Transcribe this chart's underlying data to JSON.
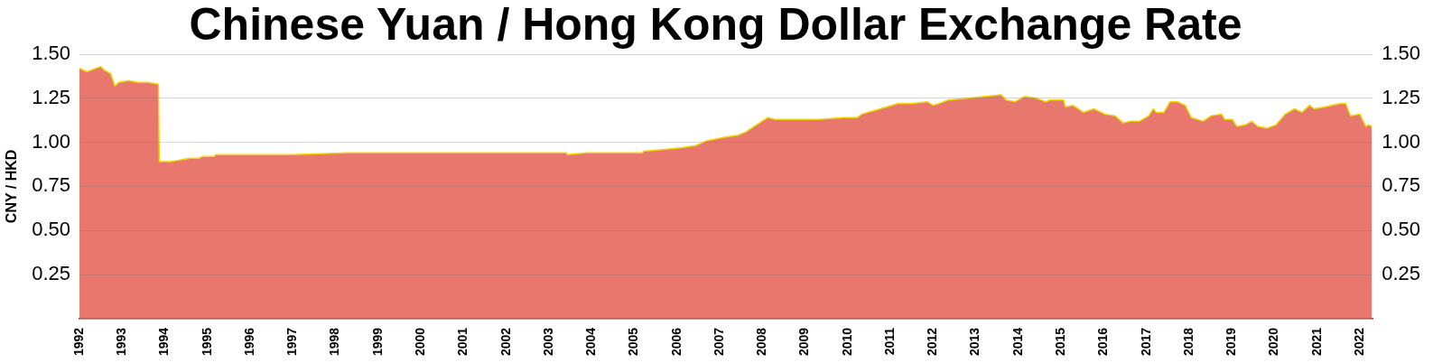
{
  "chart_data": {
    "type": "area",
    "title": "Chinese Yuan / Hong Kong Dollar Exchange Rate",
    "ylabel": "CNY / HKD",
    "x": [
      1992,
      1992.17,
      1992.5,
      1992.58,
      1992.73,
      1992.83,
      1992.92,
      1993.15,
      1993.37,
      1993.6,
      1993.85,
      1993.87,
      1994.13,
      1994.35,
      1994.58,
      1994.81,
      1994.88,
      1995.15,
      1995.2,
      1996.02,
      1997,
      1998.28,
      1999.79,
      2001.75,
      2003.41,
      2003.43,
      2003.88,
      2004.61,
      2005.19,
      2005.21,
      2005.7,
      2006.13,
      2006.42,
      2006.71,
      2006.93,
      2007.14,
      2007.43,
      2007.62,
      2007.87,
      2008.12,
      2008.3,
      2008.59,
      2009.32,
      2009.9,
      2010.22,
      2010.33,
      2010.62,
      2010.91,
      2011.17,
      2011.49,
      2011.86,
      2012.0,
      2012.14,
      2012.36,
      2012.82,
      2013.57,
      2013.6,
      2013.71,
      2013.92,
      2014.14,
      2014.42,
      2014.64,
      2014.74,
      2015.06,
      2015.1,
      2015.28,
      2015.52,
      2015.77,
      2016.02,
      2016.27,
      2016.45,
      2016.63,
      2016.84,
      2017.05,
      2017.16,
      2017.23,
      2017.41,
      2017.55,
      2017.73,
      2017.91,
      2018.05,
      2018.33,
      2018.51,
      2018.76,
      2018.83,
      2019.01,
      2019.12,
      2019.33,
      2019.47,
      2019.61,
      2019.83,
      2020.04,
      2020.25,
      2020.47,
      2020.64,
      2020.82,
      2020.93,
      2021.18,
      2021.53,
      2021.67,
      2021.78,
      2022.0,
      2022.14,
      2022.21,
      2022.28
    ],
    "series": [
      {
        "color": "#e8786d",
        "values": [
          1.42,
          1.4,
          1.43,
          1.41,
          1.39,
          1.32,
          1.34,
          1.35,
          1.34,
          1.34,
          1.33,
          0.89,
          0.89,
          0.9,
          0.91,
          0.91,
          0.92,
          0.92,
          0.93,
          0.93,
          0.93,
          0.94,
          0.94,
          0.94,
          0.94,
          0.93,
          0.94,
          0.94,
          0.94,
          0.95,
          0.96,
          0.97,
          0.98,
          1.01,
          1.02,
          1.03,
          1.04,
          1.06,
          1.1,
          1.14,
          1.13,
          1.13,
          1.13,
          1.14,
          1.14,
          1.16,
          1.18,
          1.2,
          1.22,
          1.22,
          1.23,
          1.21,
          1.22,
          1.24,
          1.25,
          1.27,
          1.27,
          1.24,
          1.23,
          1.26,
          1.25,
          1.23,
          1.24,
          1.24,
          1.2,
          1.21,
          1.17,
          1.19,
          1.16,
          1.15,
          1.11,
          1.12,
          1.12,
          1.15,
          1.19,
          1.17,
          1.17,
          1.23,
          1.23,
          1.21,
          1.14,
          1.12,
          1.15,
          1.16,
          1.13,
          1.13,
          1.09,
          1.1,
          1.12,
          1.09,
          1.08,
          1.1,
          1.16,
          1.19,
          1.17,
          1.21,
          1.19,
          1.2,
          1.22,
          1.22,
          1.15,
          1.16,
          1.09,
          1.1,
          1.09
        ]
      }
    ],
    "xlim": [
      1992,
      2022.3
    ],
    "xticks": [
      1992,
      1993,
      1994,
      1995,
      1996,
      1997,
      1998,
      1999,
      2000,
      2001,
      2002,
      2003,
      2004,
      2005,
      2006,
      2007,
      2008,
      2009,
      2010,
      2011,
      2012,
      2013,
      2014,
      2015,
      2016,
      2017,
      2018,
      2019,
      2020,
      2021,
      2022
    ],
    "ylim": [
      0,
      1.5
    ],
    "yticks": [
      {
        "value": 0,
        "label": null
      },
      {
        "value": 0.25,
        "label": "0.25"
      },
      {
        "value": 0.5,
        "label": "0.50"
      },
      {
        "value": 0.75,
        "label": "0.75"
      },
      {
        "value": 1,
        "label": "1.00"
      },
      {
        "value": 1.25,
        "label": "1.25"
      },
      {
        "value": 1.5,
        "label": "1.50"
      }
    ],
    "y2lim": [
      0,
      1.5
    ],
    "y2ticks": [
      {
        "value": 0,
        "label": null
      },
      {
        "value": 0.25,
        "label": "0.25"
      },
      {
        "value": 0.5,
        "label": "0.50"
      },
      {
        "value": 0.75,
        "label": "0.75"
      },
      {
        "value": 1,
        "label": "1.00"
      },
      {
        "value": 1.25,
        "label": "1.25"
      },
      {
        "value": 1.5,
        "label": "1.50"
      }
    ],
    "grid": "y",
    "legend": false,
    "marker": "none",
    "line_style": "solid"
  }
}
